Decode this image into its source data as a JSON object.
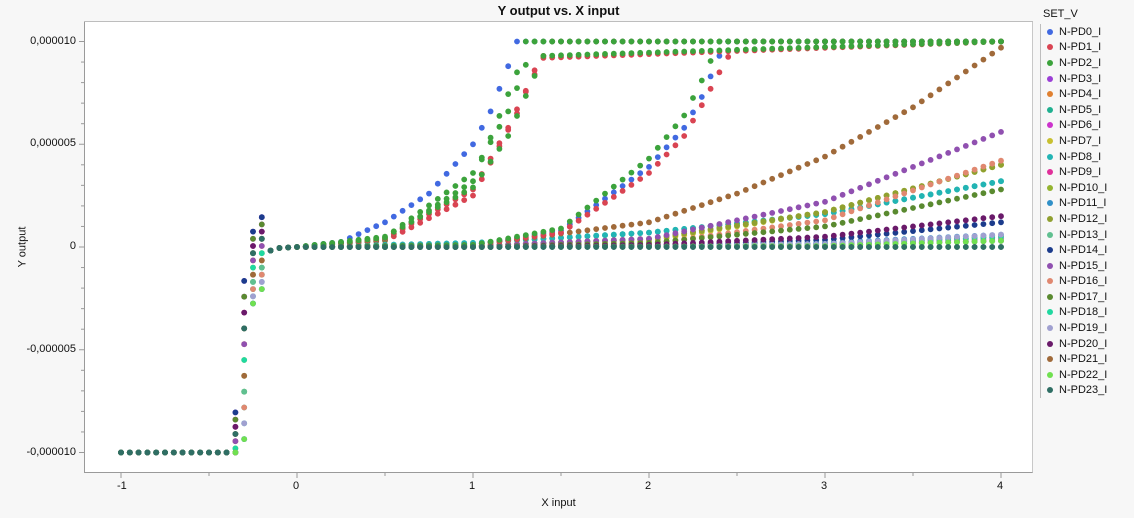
{
  "chart": {
    "title": "Y output vs. X input",
    "xlabel": "X input",
    "ylabel": "Y output",
    "legend_title": "SET_V"
  },
  "chart_data": {
    "type": "scatter",
    "title": "Y output vs. X input",
    "xlabel": "X input",
    "ylabel": "Y output",
    "xlim": [
      -1.25,
      4.15
    ],
    "ylim": [
      -1.11e-05,
      1.08e-05
    ],
    "x_ticks": [
      -1,
      0,
      1,
      2,
      3,
      4
    ],
    "x_tick_labels": [
      "-1",
      "0",
      "1",
      "2",
      "3",
      "4"
    ],
    "y_ticks": [
      1e-05,
      5e-06,
      0,
      -5e-06,
      -1e-05
    ],
    "y_tick_labels": [
      "0,000010",
      "0,000005",
      "0",
      "-0,000005",
      "-0,000010"
    ],
    "grid": false,
    "legend_position": "right",
    "x_step": 0.05,
    "x_start": -1,
    "x_end": 4,
    "units_note": "y values below in units of 1e-6",
    "common_prefix": {
      "x": [
        -1,
        -0.4,
        -0.35,
        -0.3,
        -0.25,
        -0.2,
        -0.1,
        0
      ],
      "y": [
        -10,
        -10,
        -9.8,
        -5.5,
        -1,
        -0.3,
        -0.05,
        0
      ]
    },
    "series": [
      {
        "name": "N-PD0_I",
        "color": "#4169e1",
        "x": [
          0,
          0.25,
          0.5,
          0.75,
          1,
          1.1,
          1.2,
          1.25,
          4
        ],
        "y": [
          0,
          0.25,
          1.2,
          2.6,
          5,
          6.6,
          8.8,
          10,
          10
        ]
      },
      {
        "name": "N-PD1_I",
        "color": "#d94452",
        "x": [
          0,
          0.5,
          1,
          1.25,
          1.35,
          1.45,
          4
        ],
        "y": [
          0,
          0.3,
          2.5,
          6.5,
          8.6,
          10,
          10
        ]
      },
      {
        "name": "N-PD2_I",
        "color": "#3ca33c",
        "x": [
          0,
          0.5,
          1,
          1.25,
          1.3,
          4
        ],
        "y": [
          0,
          0.35,
          3.2,
          8.5,
          10,
          10
        ]
      },
      {
        "name": "N-PD3_I",
        "color": "#9b3fd6",
        "x": [
          0,
          1,
          2,
          3,
          4
        ],
        "y": [
          0,
          0,
          0.05,
          0.1,
          0.3
        ]
      },
      {
        "name": "N-PD4_I",
        "color": "#e08030",
        "x": [
          0,
          1,
          2,
          3,
          4
        ],
        "y": [
          0,
          0,
          0.05,
          0.1,
          0.3
        ]
      },
      {
        "name": "N-PD5_I",
        "color": "#20b090",
        "x": [
          0,
          1,
          2,
          3,
          4
        ],
        "y": [
          0,
          0.2,
          0.7,
          1.6,
          3.2
        ]
      },
      {
        "name": "N-PD6_I",
        "color": "#cc33cc",
        "x": [
          0,
          1,
          2,
          3,
          4
        ],
        "y": [
          0,
          0,
          0.05,
          0.15,
          0.4
        ]
      },
      {
        "name": "N-PD7_I",
        "color": "#c8c030",
        "x": [
          0,
          1,
          2,
          3,
          4
        ],
        "y": [
          0,
          0.05,
          0.3,
          1.7,
          4.0
        ]
      },
      {
        "name": "N-PD8_I",
        "color": "#22b4b4",
        "x": [
          0,
          1,
          2,
          3,
          4
        ],
        "y": [
          0,
          0.2,
          0.7,
          1.6,
          3.2
        ]
      },
      {
        "name": "N-PD9_I",
        "color": "#e0309a",
        "x": [
          0,
          1,
          2,
          3,
          4
        ],
        "y": [
          0,
          0,
          0.05,
          0.15,
          0.5
        ]
      },
      {
        "name": "N-PD10_I",
        "color": "#94b430",
        "x": [
          0,
          1,
          2,
          3,
          4
        ],
        "y": [
          0,
          0.05,
          0.4,
          1.7,
          4.0
        ]
      },
      {
        "name": "N-PD11_I",
        "color": "#3090c8",
        "x": [
          0,
          1,
          2,
          3,
          4
        ],
        "y": [
          0,
          0,
          0.05,
          0.2,
          0.6
        ]
      },
      {
        "name": "N-PD12_I",
        "color": "#90a030",
        "x": [
          0,
          1,
          2,
          3,
          4
        ],
        "y": [
          0,
          0.05,
          0.4,
          1.7,
          4.0
        ]
      },
      {
        "name": "N-PD13_I",
        "color": "#60c090",
        "x": [
          0,
          1,
          2,
          3,
          4
        ],
        "y": [
          0,
          0,
          0.05,
          0.1,
          0.3
        ]
      },
      {
        "name": "N-PD14_I",
        "color": "#1c3c8c",
        "x": [
          0,
          1,
          2,
          3,
          4
        ],
        "y": [
          0,
          0,
          0.05,
          0.35,
          1.2
        ]
      },
      {
        "name": "N-PD15_I",
        "color": "#9050b0",
        "x": [
          0,
          1,
          2,
          3,
          4
        ],
        "y": [
          0,
          0.05,
          0.4,
          2.2,
          5.6
        ]
      },
      {
        "name": "N-PD16_I",
        "color": "#e08870",
        "x": [
          0,
          1,
          2,
          3,
          4
        ],
        "y": [
          0,
          0,
          0.15,
          1.3,
          4.2
        ]
      },
      {
        "name": "N-PD17_I",
        "color": "#5a8a30",
        "x": [
          0,
          1,
          2,
          3,
          4
        ],
        "y": [
          0,
          0,
          0.2,
          1.0,
          2.8
        ]
      },
      {
        "name": "N-PD18_I",
        "color": "#20d8a0",
        "x": [
          0,
          1,
          2,
          3,
          4
        ],
        "y": [
          0,
          0,
          0.05,
          0.15,
          0.5
        ]
      },
      {
        "name": "N-PD19_I",
        "color": "#a0a0d0",
        "x": [
          0,
          1,
          2,
          3,
          4
        ],
        "y": [
          0,
          0,
          0.05,
          0.15,
          0.6
        ]
      },
      {
        "name": "N-PD20_I",
        "color": "#6a1a6a",
        "x": [
          0,
          1,
          2,
          3,
          4
        ],
        "y": [
          0,
          0,
          0.1,
          0.5,
          1.5
        ]
      },
      {
        "name": "N-PD21_I",
        "color": "#a06a3a",
        "x": [
          0,
          1,
          2,
          2.5,
          3,
          3.5,
          4
        ],
        "y": [
          0,
          0.1,
          1.2,
          2.6,
          4.4,
          6.8,
          9.7
        ]
      },
      {
        "name": "N-PD22_I",
        "color": "#70e050",
        "x": [
          0,
          1,
          2,
          3,
          4
        ],
        "y": [
          0,
          0,
          0.02,
          0.05,
          0.3
        ]
      },
      {
        "name": "N-PD23_I",
        "color": "#2f6e64",
        "x": [
          0,
          1,
          2,
          3,
          4
        ],
        "y": [
          0,
          0,
          0,
          0,
          0
        ]
      }
    ],
    "extra_curves": [
      {
        "name": "N-PD0_I",
        "color": "#4169e1",
        "x": [
          0,
          1,
          1.5,
          2,
          2.2,
          2.3,
          2.4,
          2.45,
          4
        ],
        "y": [
          0,
          0.1,
          0.8,
          3.9,
          5.8,
          7.3,
          9.3,
          10,
          10
        ]
      },
      {
        "name": "N-PD1_I",
        "color": "#d94452",
        "x": [
          0,
          1,
          1.5,
          2,
          2.2,
          2.3,
          2.4,
          2.5,
          4
        ],
        "y": [
          0,
          0.1,
          0.7,
          3.6,
          5.4,
          6.9,
          8.5,
          10,
          10
        ]
      },
      {
        "name": "N-PD2_I",
        "color": "#3ca33c",
        "x": [
          0,
          1,
          1.5,
          2,
          2.2,
          2.3,
          2.4,
          4
        ],
        "y": [
          0,
          0.1,
          0.9,
          4.3,
          6.4,
          8.1,
          10,
          10
        ]
      },
      {
        "name": "N-PD1_I",
        "color": "#d94452",
        "x": [
          0,
          0.5,
          1,
          1.2,
          1.3,
          1.4,
          4
        ],
        "y": [
          0,
          0.4,
          2.8,
          5.8,
          7.6,
          9.2,
          10
        ]
      },
      {
        "name": "N-PD2_I",
        "color": "#3ca33c",
        "x": [
          0,
          0.5,
          1,
          1.2,
          1.35,
          4
        ],
        "y": [
          0,
          0.45,
          3.6,
          6.6,
          10,
          10
        ]
      },
      {
        "name": "N-PD2_I",
        "color": "#3ca33c",
        "x": [
          0,
          0.5,
          1,
          1.2,
          1.4,
          4
        ],
        "y": [
          0,
          0.5,
          2.9,
          5.4,
          9.3,
          10
        ]
      }
    ]
  },
  "legend": {
    "title": "SET_V",
    "items": [
      {
        "label": "N-PD0_I",
        "color": "#4169e1"
      },
      {
        "label": "N-PD1_I",
        "color": "#d94452"
      },
      {
        "label": "N-PD2_I",
        "color": "#3ca33c"
      },
      {
        "label": "N-PD3_I",
        "color": "#9b3fd6"
      },
      {
        "label": "N-PD4_I",
        "color": "#e08030"
      },
      {
        "label": "N-PD5_I",
        "color": "#20b090"
      },
      {
        "label": "N-PD6_I",
        "color": "#cc33cc"
      },
      {
        "label": "N-PD7_I",
        "color": "#c8c030"
      },
      {
        "label": "N-PD8_I",
        "color": "#22b4b4"
      },
      {
        "label": "N-PD9_I",
        "color": "#e0309a"
      },
      {
        "label": "N-PD10_I",
        "color": "#94b430"
      },
      {
        "label": "N-PD11_I",
        "color": "#3090c8"
      },
      {
        "label": "N-PD12_I",
        "color": "#90a030"
      },
      {
        "label": "N-PD13_I",
        "color": "#60c090"
      },
      {
        "label": "N-PD14_I",
        "color": "#1c3c8c"
      },
      {
        "label": "N-PD15_I",
        "color": "#9050b0"
      },
      {
        "label": "N-PD16_I",
        "color": "#e08870"
      },
      {
        "label": "N-PD17_I",
        "color": "#5a8a30"
      },
      {
        "label": "N-PD18_I",
        "color": "#20d8a0"
      },
      {
        "label": "N-PD19_I",
        "color": "#a0a0d0"
      },
      {
        "label": "N-PD20_I",
        "color": "#6a1a6a"
      },
      {
        "label": "N-PD21_I",
        "color": "#a06a3a"
      },
      {
        "label": "N-PD22_I",
        "color": "#70e050"
      },
      {
        "label": "N-PD23_I",
        "color": "#2f6e64"
      }
    ]
  }
}
